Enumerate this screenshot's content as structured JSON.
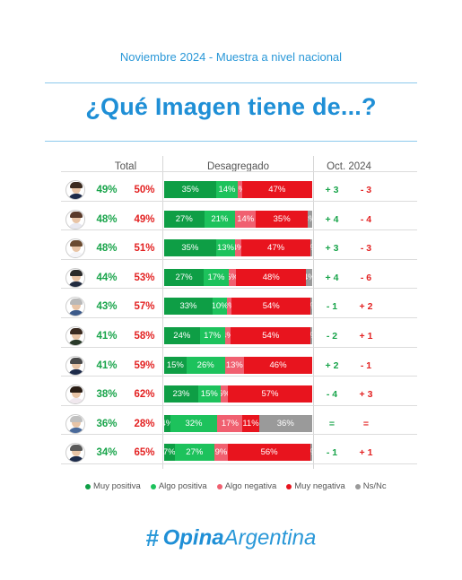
{
  "subtitle": "Noviembre 2024 - Muestra a nivel nacional",
  "title": "¿Qué Imagen tiene de...?",
  "columns": {
    "total": "Total",
    "breakdown": "Desagregado",
    "compare": "Oct. 2024"
  },
  "colors": {
    "muy_positiva": "#0e9e45",
    "algo_positiva": "#1dc25c",
    "algo_negativa": "#f06070",
    "muy_negativa": "#e8141e",
    "ns_nc": "#9a9a9a"
  },
  "legend": [
    {
      "label": "Muy positiva",
      "color": "#0e9e45"
    },
    {
      "label": "Algo positiva",
      "color": "#1dc25c"
    },
    {
      "label": "Algo negativa",
      "color": "#f06070"
    },
    {
      "label": "Muy negativa",
      "color": "#e8141e"
    },
    {
      "label": "Ns/Nc",
      "color": "#9a9a9a"
    }
  ],
  "logo": {
    "hash": "#",
    "opina": "Opina",
    "argentina": "Argentina"
  },
  "chart_data": {
    "type": "bar",
    "stacked": true,
    "orientation": "horizontal",
    "series_names": [
      "Muy positiva",
      "Algo positiva",
      "Algo negativa",
      "Muy negativa",
      "Ns/Nc"
    ],
    "rows": [
      {
        "positive": "49%",
        "negative": "50%",
        "values": [
          35,
          14,
          3,
          47,
          0
        ],
        "labels": [
          "35%",
          "14%",
          "3%",
          "47%",
          "0%"
        ],
        "chg_pos": "+ 3",
        "chg_neg": "- 3"
      },
      {
        "positive": "48%",
        "negative": "49%",
        "values": [
          27,
          21,
          14,
          35,
          3
        ],
        "labels": [
          "27%",
          "21%",
          "14%",
          "35%",
          "3%"
        ],
        "chg_pos": "+ 4",
        "chg_neg": "- 4"
      },
      {
        "positive": "48%",
        "negative": "51%",
        "values": [
          35,
          13,
          4,
          47,
          1
        ],
        "labels": [
          "35%",
          "13%",
          "4%",
          "47%",
          "1%"
        ],
        "chg_pos": "+ 3",
        "chg_neg": "- 3"
      },
      {
        "positive": "44%",
        "negative": "53%",
        "values": [
          27,
          17,
          5,
          48,
          4
        ],
        "labels": [
          "27%",
          "17%",
          "5%",
          "48%",
          "4%"
        ],
        "chg_pos": "+ 4",
        "chg_neg": "- 6"
      },
      {
        "positive": "43%",
        "negative": "57%",
        "values": [
          33,
          10,
          3,
          54,
          1
        ],
        "labels": [
          "33%",
          "10%",
          "3%",
          "54%",
          "1%"
        ],
        "chg_pos": "- 1",
        "chg_neg": "+ 2"
      },
      {
        "positive": "41%",
        "negative": "58%",
        "values": [
          24,
          17,
          4,
          54,
          1
        ],
        "labels": [
          "24%",
          "17%",
          "4%",
          "54%",
          "1%"
        ],
        "chg_pos": "- 2",
        "chg_neg": "+ 1"
      },
      {
        "positive": "41%",
        "negative": "59%",
        "values": [
          15,
          26,
          13,
          46,
          0
        ],
        "labels": [
          "15%",
          "26%",
          "13%",
          "46%",
          "0%"
        ],
        "chg_pos": "+ 2",
        "chg_neg": "- 1"
      },
      {
        "positive": "38%",
        "negative": "62%",
        "values": [
          23,
          15,
          5,
          57,
          0
        ],
        "labels": [
          "23%",
          "15%",
          "5%",
          "57%",
          "0%"
        ],
        "chg_pos": "- 4",
        "chg_neg": "+ 3"
      },
      {
        "positive": "36%",
        "negative": "28%",
        "values": [
          4,
          32,
          17,
          11,
          36
        ],
        "labels": [
          "4%",
          "32%",
          "17%",
          "11%",
          "36%"
        ],
        "chg_pos": "=",
        "chg_neg": "="
      },
      {
        "positive": "34%",
        "negative": "65%",
        "values": [
          7,
          27,
          9,
          56,
          1
        ],
        "labels": [
          "7%",
          "27%",
          "9%",
          "56%",
          "1%"
        ],
        "chg_pos": "- 1",
        "chg_neg": "+ 1"
      }
    ]
  }
}
